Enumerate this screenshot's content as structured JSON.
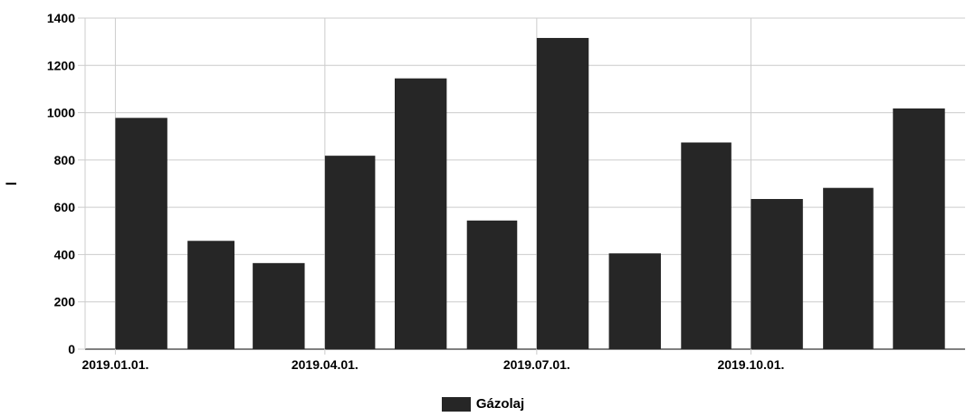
{
  "chart_data": {
    "type": "bar",
    "ylabel": "l",
    "xlabel": "",
    "ylim": [
      0,
      1400
    ],
    "yticks": [
      0,
      200,
      400,
      600,
      800,
      1000,
      1200,
      1400
    ],
    "x_tick_labels": [
      "2019.01.01.",
      "2019.04.01.",
      "2019.07.01.",
      "2019.10.01."
    ],
    "x": [
      "2019-01",
      "2019-02",
      "2019-03",
      "2019-04",
      "2019-05",
      "2019-06",
      "2019-07",
      "2019-08",
      "2019-09",
      "2019-10",
      "2019-11",
      "2019-12"
    ],
    "series": [
      {
        "name": "Gázolaj",
        "color": "#262626",
        "values": [
          978,
          458,
          364,
          818,
          1145,
          544,
          1316,
          405,
          874,
          635,
          682,
          1018
        ]
      }
    ],
    "grid": true,
    "legend": "bottom-center"
  }
}
